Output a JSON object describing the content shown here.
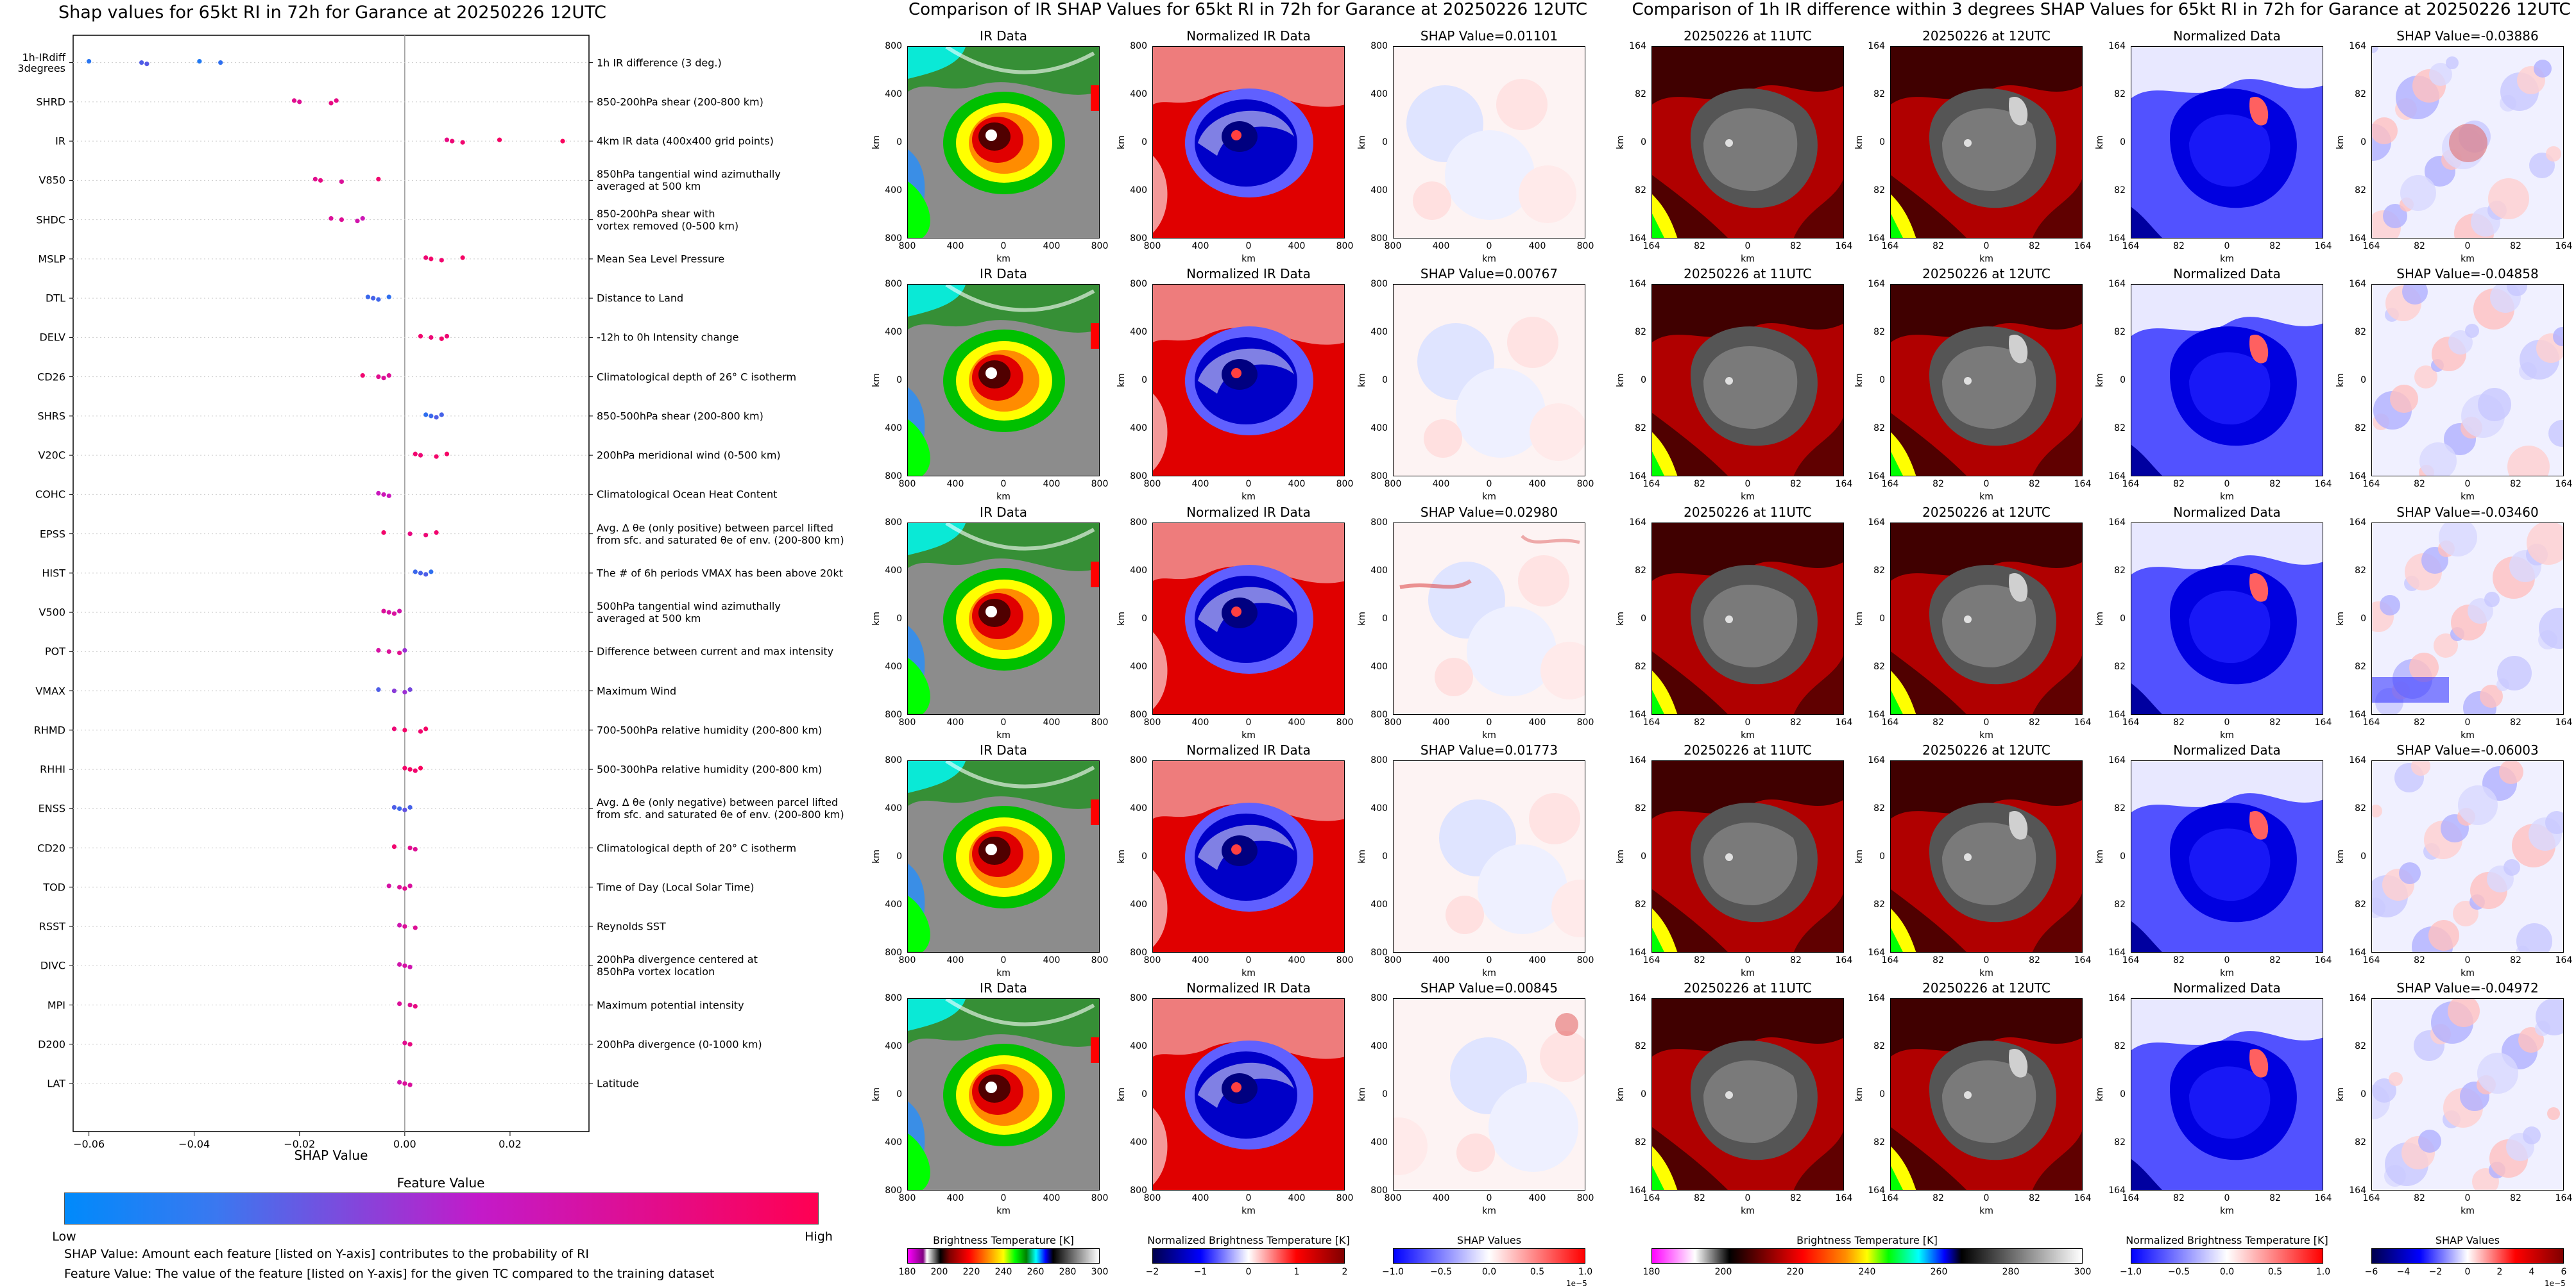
{
  "main_title": "Shap values for 65kt RI in 72h for Garance at 20250226 12UTC",
  "mid_title": "Comparison of IR SHAP Values for 65kt RI in 72h for Garance at 20250226 12UTC",
  "right_title": "Comparison of 1h IR difference within 3 degrees SHAP Values for 65kt RI in 72h for Garance at 20250226 12UTC",
  "chart_data": {
    "type": "scatter",
    "title": "Shap values for 65kt RI in 72h for Garance at 20250226 12UTC",
    "xlabel": "SHAP Value",
    "ylabel": "",
    "xlim": [
      -0.063,
      0.035
    ],
    "x_ticks": [
      "−0.06",
      "−0.04",
      "−0.02",
      "0.00",
      "0.02"
    ],
    "x_tick_values": [
      -0.06,
      -0.04,
      -0.02,
      0.0,
      0.02
    ],
    "features": [
      {
        "name": "1h-IRdiff\n3degrees",
        "desc": "1h IR difference (3 deg.)",
        "points": [
          [
            -0.06,
            0.1
          ],
          [
            -0.05,
            0.2
          ],
          [
            -0.049,
            0.22
          ],
          [
            -0.039,
            0.08
          ],
          [
            -0.035,
            0.12
          ]
        ]
      },
      {
        "name": "SHRD",
        "desc": "850-200hPa shear (200-800 km)",
        "points": [
          [
            -0.021,
            0.75
          ],
          [
            -0.02,
            0.72
          ],
          [
            -0.014,
            0.8
          ],
          [
            -0.013,
            0.78
          ]
        ]
      },
      {
        "name": "IR",
        "desc": "4km IR data (400x400 grid points)",
        "points": [
          [
            0.008,
            0.8
          ],
          [
            0.009,
            0.85
          ],
          [
            0.011,
            0.88
          ],
          [
            0.018,
            0.92
          ],
          [
            0.03,
            0.95
          ]
        ]
      },
      {
        "name": "V850",
        "desc": "850hPa tangential wind azimuthally\naveraged at 500 km",
        "points": [
          [
            -0.017,
            0.75
          ],
          [
            -0.016,
            0.78
          ],
          [
            -0.012,
            0.7
          ],
          [
            -0.005,
            0.88
          ]
        ]
      },
      {
        "name": "SHDC",
        "desc": "850-200hPa shear with\nvortex removed (0-500 km)",
        "points": [
          [
            -0.014,
            0.7
          ],
          [
            -0.012,
            0.72
          ],
          [
            -0.009,
            0.62
          ],
          [
            -0.008,
            0.58
          ]
        ]
      },
      {
        "name": "MSLP",
        "desc": "Mean Sea Level Pressure",
        "points": [
          [
            0.004,
            0.86
          ],
          [
            0.005,
            0.9
          ],
          [
            0.007,
            0.88
          ],
          [
            0.011,
            0.92
          ]
        ]
      },
      {
        "name": "DTL",
        "desc": "Distance to Land",
        "points": [
          [
            -0.007,
            0.15
          ],
          [
            -0.006,
            0.18
          ],
          [
            -0.005,
            0.16
          ],
          [
            -0.003,
            0.12
          ]
        ]
      },
      {
        "name": "DELV",
        "desc": "-12h to 0h Intensity change",
        "points": [
          [
            0.003,
            0.88
          ],
          [
            0.005,
            0.85
          ],
          [
            0.007,
            0.9
          ],
          [
            0.008,
            0.86
          ]
        ]
      },
      {
        "name": "CD26",
        "desc": "Climatological depth of 26° C isotherm",
        "points": [
          [
            -0.008,
            0.88
          ],
          [
            -0.005,
            0.75
          ],
          [
            -0.004,
            0.7
          ],
          [
            -0.003,
            0.72
          ]
        ]
      },
      {
        "name": "SHRS",
        "desc": "850-500hPa shear (200-800 km)",
        "points": [
          [
            0.004,
            0.12
          ],
          [
            0.005,
            0.15
          ],
          [
            0.006,
            0.2
          ],
          [
            0.007,
            0.18
          ]
        ]
      },
      {
        "name": "V20C",
        "desc": "200hPa meridional wind (0-500 km)",
        "points": [
          [
            0.002,
            0.88
          ],
          [
            0.003,
            0.85
          ],
          [
            0.006,
            0.9
          ],
          [
            0.008,
            0.92
          ]
        ]
      },
      {
        "name": "COHC",
        "desc": "Climatological Ocean Heat Content",
        "points": [
          [
            -0.005,
            0.55
          ],
          [
            -0.004,
            0.58
          ],
          [
            -0.003,
            0.55
          ]
        ]
      },
      {
        "name": "EPSS",
        "desc": "Avg. Δ θe (only positive) between parcel lifted\nfrom sfc. and saturated θe of env. (200-800 km)",
        "points": [
          [
            -0.004,
            0.9
          ],
          [
            0.001,
            0.8
          ],
          [
            0.004,
            0.85
          ],
          [
            0.006,
            0.88
          ]
        ]
      },
      {
        "name": "HIST",
        "desc": "The # of 6h periods VMAX has been above 20kt",
        "points": [
          [
            0.002,
            0.15
          ],
          [
            0.003,
            0.18
          ],
          [
            0.004,
            0.2
          ],
          [
            0.005,
            0.12
          ]
        ]
      },
      {
        "name": "V500",
        "desc": "500hPa tangential wind azimuthally\naveraged at 500 km",
        "points": [
          [
            -0.004,
            0.7
          ],
          [
            -0.003,
            0.65
          ],
          [
            -0.002,
            0.68
          ],
          [
            -0.001,
            0.62
          ]
        ]
      },
      {
        "name": "POT",
        "desc": "Difference between current and max intensity",
        "points": [
          [
            -0.005,
            0.65
          ],
          [
            -0.003,
            0.7
          ],
          [
            -0.001,
            0.75
          ],
          [
            0.0,
            0.4
          ]
        ]
      },
      {
        "name": "VMAX",
        "desc": "Maximum Wind",
        "points": [
          [
            -0.005,
            0.2
          ],
          [
            -0.002,
            0.35
          ],
          [
            0.0,
            0.4
          ],
          [
            0.001,
            0.3
          ]
        ]
      },
      {
        "name": "RHMD",
        "desc": "700-500hPa relative humidity (200-800 km)",
        "points": [
          [
            -0.002,
            0.85
          ],
          [
            0.0,
            0.9
          ],
          [
            0.003,
            0.88
          ],
          [
            0.004,
            0.92
          ]
        ]
      },
      {
        "name": "RHHI",
        "desc": "500-300hPa relative humidity (200-800 km)",
        "points": [
          [
            0.0,
            0.9
          ],
          [
            0.001,
            0.92
          ],
          [
            0.002,
            0.88
          ],
          [
            0.003,
            0.95
          ]
        ]
      },
      {
        "name": "ENSS",
        "desc": "Avg. Δ θe (only negative) between parcel lifted\nfrom sfc. and saturated θe of env. (200-800 km)",
        "points": [
          [
            -0.002,
            0.2
          ],
          [
            -0.001,
            0.15
          ],
          [
            0.0,
            0.25
          ],
          [
            0.001,
            0.18
          ]
        ]
      },
      {
        "name": "CD20",
        "desc": "Climatological depth of 20° C isotherm",
        "points": [
          [
            -0.002,
            0.88
          ],
          [
            0.001,
            0.75
          ],
          [
            0.002,
            0.72
          ]
        ]
      },
      {
        "name": "TOD",
        "desc": "Time of Day (Local Solar Time)",
        "points": [
          [
            -0.003,
            0.65
          ],
          [
            -0.001,
            0.7
          ],
          [
            0.0,
            0.75
          ],
          [
            0.001,
            0.68
          ]
        ]
      },
      {
        "name": "RSST",
        "desc": "Reynolds SST",
        "points": [
          [
            -0.001,
            0.6
          ],
          [
            0.0,
            0.7
          ],
          [
            0.002,
            0.72
          ]
        ]
      },
      {
        "name": "DIVC",
        "desc": "200hPa divergence centered at\n850hPa vortex location",
        "points": [
          [
            -0.001,
            0.62
          ],
          [
            0.0,
            0.65
          ],
          [
            0.001,
            0.6
          ]
        ]
      },
      {
        "name": "MPI",
        "desc": "Maximum potential intensity",
        "points": [
          [
            -0.001,
            0.7
          ],
          [
            0.001,
            0.72
          ],
          [
            0.002,
            0.8
          ]
        ]
      },
      {
        "name": "D200",
        "desc": "200hPa divergence (0-1000 km)",
        "points": [
          [
            0.0,
            0.75
          ],
          [
            0.001,
            0.8
          ]
        ]
      },
      {
        "name": "LAT",
        "desc": "Latitude",
        "points": [
          [
            -0.001,
            0.62
          ],
          [
            0.0,
            0.7
          ],
          [
            0.001,
            0.68
          ]
        ]
      }
    ],
    "colorbar": {
      "title": "Feature Value",
      "low": "Low",
      "high": "High",
      "colors": [
        "#008afb",
        "#c31ac9",
        "#ff0052"
      ]
    }
  },
  "footnote_1": "SHAP Value: Amount each feature [listed on Y-axis] contributes to the probability of RI",
  "footnote_2": "Feature Value: The value of the feature [listed on Y-axis] for the given TC compared to the training dataset",
  "mid_panels": {
    "col_titles": [
      "IR Data",
      "Normalized IR Data"
    ],
    "shap_titles": [
      "SHAP Value=0.01101",
      "SHAP Value=0.00767",
      "SHAP Value=0.02980",
      "SHAP Value=0.01773",
      "SHAP Value=0.00845"
    ],
    "y_ticks": [
      "800",
      "400",
      "0",
      "400",
      "800"
    ],
    "x_ticks": [
      "800",
      "400",
      "0",
      "400",
      "800"
    ],
    "axis_unit": "km"
  },
  "right_panels": {
    "col_titles": [
      "20250226 at 11UTC",
      "20250226 at 12UTC",
      "Normalized Data"
    ],
    "shap_titles": [
      "SHAP Value=-0.03886",
      "SHAP Value=-0.04858",
      "SHAP Value=-0.03460",
      "SHAP Value=-0.06003",
      "SHAP Value=-0.04972"
    ],
    "y_ticks": [
      "164",
      "82",
      "0",
      "82",
      "164"
    ],
    "x_ticks": [
      "164",
      "82",
      "0",
      "82",
      "164"
    ],
    "axis_unit": "km"
  },
  "colorbars": [
    {
      "label": "Brightness Temperature [K]",
      "ticks": [
        "180",
        "200",
        "220",
        "240",
        "260",
        "280",
        "300"
      ],
      "exp": ""
    },
    {
      "label": "Normalized Brightness Temperature [K]",
      "ticks": [
        "−2",
        "−1",
        "0",
        "1",
        "2"
      ],
      "exp": ""
    },
    {
      "label": "SHAP Values",
      "ticks": [
        "−1.0",
        "−0.5",
        "0.0",
        "0.5",
        "1.0"
      ],
      "exp": "1e−5"
    },
    {
      "label": "Brightness Temperature [K]",
      "ticks": [
        "180",
        "200",
        "220",
        "240",
        "260",
        "280",
        "300"
      ],
      "exp": ""
    },
    {
      "label": "Normalized Brightness Temperature [K]",
      "ticks": [
        "−1.0",
        "−0.5",
        "0.0",
        "0.5",
        "1.0"
      ],
      "exp": ""
    },
    {
      "label": "SHAP Values",
      "ticks": [
        "−6",
        "−4",
        "−2",
        "0",
        "2",
        "4",
        "6"
      ],
      "exp": "1e−5"
    }
  ],
  "colors": {
    "feature_low": "#008afb",
    "feature_mid": "#c31ac9",
    "feature_high": "#ff0052",
    "shap_neg": "#0000cc",
    "shap_pos": "#cc0000"
  }
}
